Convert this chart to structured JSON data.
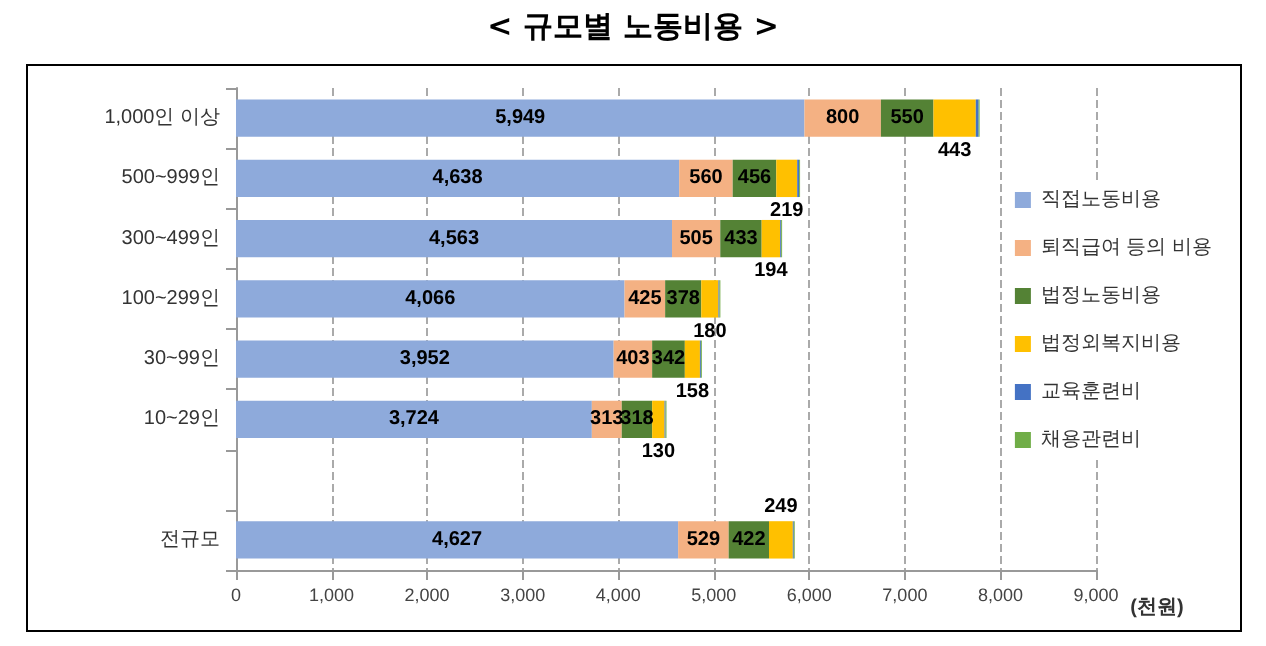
{
  "chart_data": {
    "type": "bar",
    "orientation": "horizontal",
    "stacked": true,
    "title": "< 규모별 노동비용 >",
    "xlabel": "(천원)",
    "categories": [
      "1,000인 이상",
      "500~999인",
      "300~499인",
      "100~299인",
      "30~99인",
      "10~29인",
      null,
      "전규모"
    ],
    "series": [
      {
        "name": "직접노동비용",
        "color": "#8eaadb",
        "values": [
          5949,
          4638,
          4563,
          4066,
          3952,
          3724,
          null,
          4627
        ],
        "value_labels": [
          "5,949",
          "4,638",
          "4,563",
          "4,066",
          "3,952",
          "3,724",
          null,
          "4,627"
        ]
      },
      {
        "name": "퇴직급여 등의 비용",
        "color": "#f4b183",
        "values": [
          800,
          560,
          505,
          425,
          403,
          313,
          null,
          529
        ],
        "value_labels": [
          "800",
          "560",
          "505",
          "425",
          "403",
          "313",
          null,
          "529"
        ]
      },
      {
        "name": "법정노동비용",
        "color": "#548235",
        "values": [
          550,
          456,
          433,
          378,
          342,
          318,
          null,
          422
        ],
        "value_labels": [
          "550",
          "456",
          "433",
          "378",
          "342",
          "318",
          null,
          "422"
        ]
      },
      {
        "name": "법정외복지비용",
        "color": "#ffc000",
        "values": [
          443,
          219,
          194,
          180,
          158,
          130,
          null,
          249
        ],
        "value_labels": [
          "443",
          "219",
          "194",
          "180",
          "158",
          "130",
          null,
          "249"
        ]
      },
      {
        "name": "교육훈련비",
        "color": "#4472c4",
        "values": [
          30,
          20,
          10,
          10,
          10,
          10,
          null,
          10
        ]
      },
      {
        "name": "채용관련비",
        "color": "#70ad47",
        "values": [
          10,
          10,
          10,
          10,
          10,
          10,
          null,
          10
        ]
      }
    ],
    "xlim": [
      0,
      9000
    ],
    "xticks": [
      {
        "value": 0,
        "label": "0"
      },
      {
        "value": 1000,
        "label": "1,000"
      },
      {
        "value": 2000,
        "label": "2,000"
      },
      {
        "value": 3000,
        "label": "3,000"
      },
      {
        "value": 4000,
        "label": "4,000"
      },
      {
        "value": 5000,
        "label": "5,000"
      },
      {
        "value": 6000,
        "label": "6,000"
      },
      {
        "value": 7000,
        "label": "7,000"
      },
      {
        "value": 8000,
        "label": "8,000"
      },
      {
        "value": 9000,
        "label": "9,000"
      }
    ],
    "grid": "x",
    "legend": "right"
  }
}
